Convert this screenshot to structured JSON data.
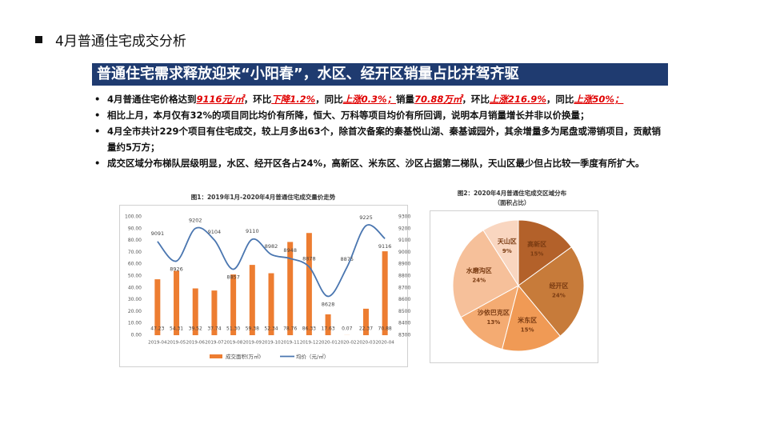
{
  "slide": {
    "heading": "4月普通住宅成交分析",
    "banner": "普通住宅需求释放迎来“小阳春”，水区、经开区销量占比并驾齐驱",
    "bullets": [
      [
        "4月普通住宅价格达到",
        {
          "text": "9116元/㎡",
          "emphasis": true
        },
        "，环比",
        {
          "text": "下降1.2%",
          "emphasis": true
        },
        "，同比",
        {
          "text": "上涨0.3%；",
          "emphasis": true
        },
        "销量",
        {
          "text": "70.88万㎡",
          "emphasis": true
        },
        "，环比",
        {
          "text": "上涨216.9%",
          "emphasis": true
        },
        "，同比",
        {
          "text": "上涨50%；",
          "emphasis": true
        }
      ],
      [
        "相比上月，本月仅有32%的项目同比均价有所降，恒大、万科等项目均价有所回调，说明本月销量增长并非以价换量；"
      ],
      [
        "4月全市共计229个项目有住宅成交，较上月多出63个，除首次备案的秦基悦山湖、秦基诚园外，其余增量多为尾盘或滞销项目，贡献销量约5万方；"
      ],
      [
        "成交区域分布梯队层级明显，水区、经开区各占24%，高新区、米东区、沙区占据第二梯队，天山区最少但占比较一季度有所扩大。"
      ]
    ]
  },
  "chart_data": [
    {
      "type": "combo",
      "title": "图1：2019年1月-2020年4月普通住宅成交量价走势",
      "categories": [
        "2019-04",
        "2019-05",
        "2019-06",
        "2019-07",
        "2019-08",
        "2019-09",
        "2019-10",
        "2019-11",
        "2019-12",
        "2020-01",
        "2020-02",
        "2020-03",
        "2020-04"
      ],
      "series": [
        {
          "name": "成交面积(万㎡)",
          "type": "bar",
          "color": "#ed7d31",
          "values": [
            47.23,
            54.31,
            39.52,
            37.74,
            51.3,
            59.38,
            52.34,
            78.76,
            86.33,
            17.63,
            0.07,
            22.37,
            70.88
          ],
          "value_labels": [
            "47.23",
            "54.31",
            "39.52",
            "37.74",
            "51.30",
            "59.38",
            "52.34",
            "78.76",
            "86.33",
            "17.63",
            "0.07",
            "22.37",
            "70.88"
          ]
        },
        {
          "name": "均价（元/㎡）",
          "type": "line",
          "axis": "y2",
          "color": "#4a76b0",
          "values": [
            9091,
            8926,
            9202,
            9104,
            8857,
            9110,
            8982,
            8948,
            8878,
            8628,
            8875,
            9225,
            9116
          ]
        }
      ],
      "ylim": [
        0,
        100
      ],
      "yticks": [
        {
          "value": 0,
          "label": "0.00"
        },
        {
          "value": 10,
          "label": "10.00"
        },
        {
          "value": 20,
          "label": "20.00"
        },
        {
          "value": 30,
          "label": "30.00"
        },
        {
          "value": 40,
          "label": "40.00"
        },
        {
          "value": 50,
          "label": "50.00"
        },
        {
          "value": 60,
          "label": "60.00"
        },
        {
          "value": 70,
          "label": "70.00"
        },
        {
          "value": 80,
          "label": "80.00"
        },
        {
          "value": 90,
          "label": "90.00"
        },
        {
          "value": 100,
          "label": "100.00"
        }
      ],
      "y2lim": [
        8300,
        9300
      ],
      "y2ticks": [
        8300,
        8400,
        8500,
        8600,
        8700,
        8800,
        8900,
        9000,
        9100,
        9200,
        9300
      ],
      "legend": "bottom"
    },
    {
      "type": "pie",
      "title": "图2：2020年4月普通住宅成交区域分布",
      "subtitle": "（面积占比）",
      "categories": [
        "高新区",
        "经开区",
        "米东区",
        "沙依巴克区",
        "水磨沟区",
        "天山区"
      ],
      "values": [
        15,
        24,
        15,
        13,
        24,
        9
      ],
      "value_labels": [
        "15%",
        "24%",
        "15%",
        "13%",
        "24%",
        "9%"
      ],
      "colors": [
        "#b3612a",
        "#c77b3a",
        "#f09a55",
        "#f4ab72",
        "#f6c09a",
        "#f9d6c0"
      ]
    }
  ]
}
